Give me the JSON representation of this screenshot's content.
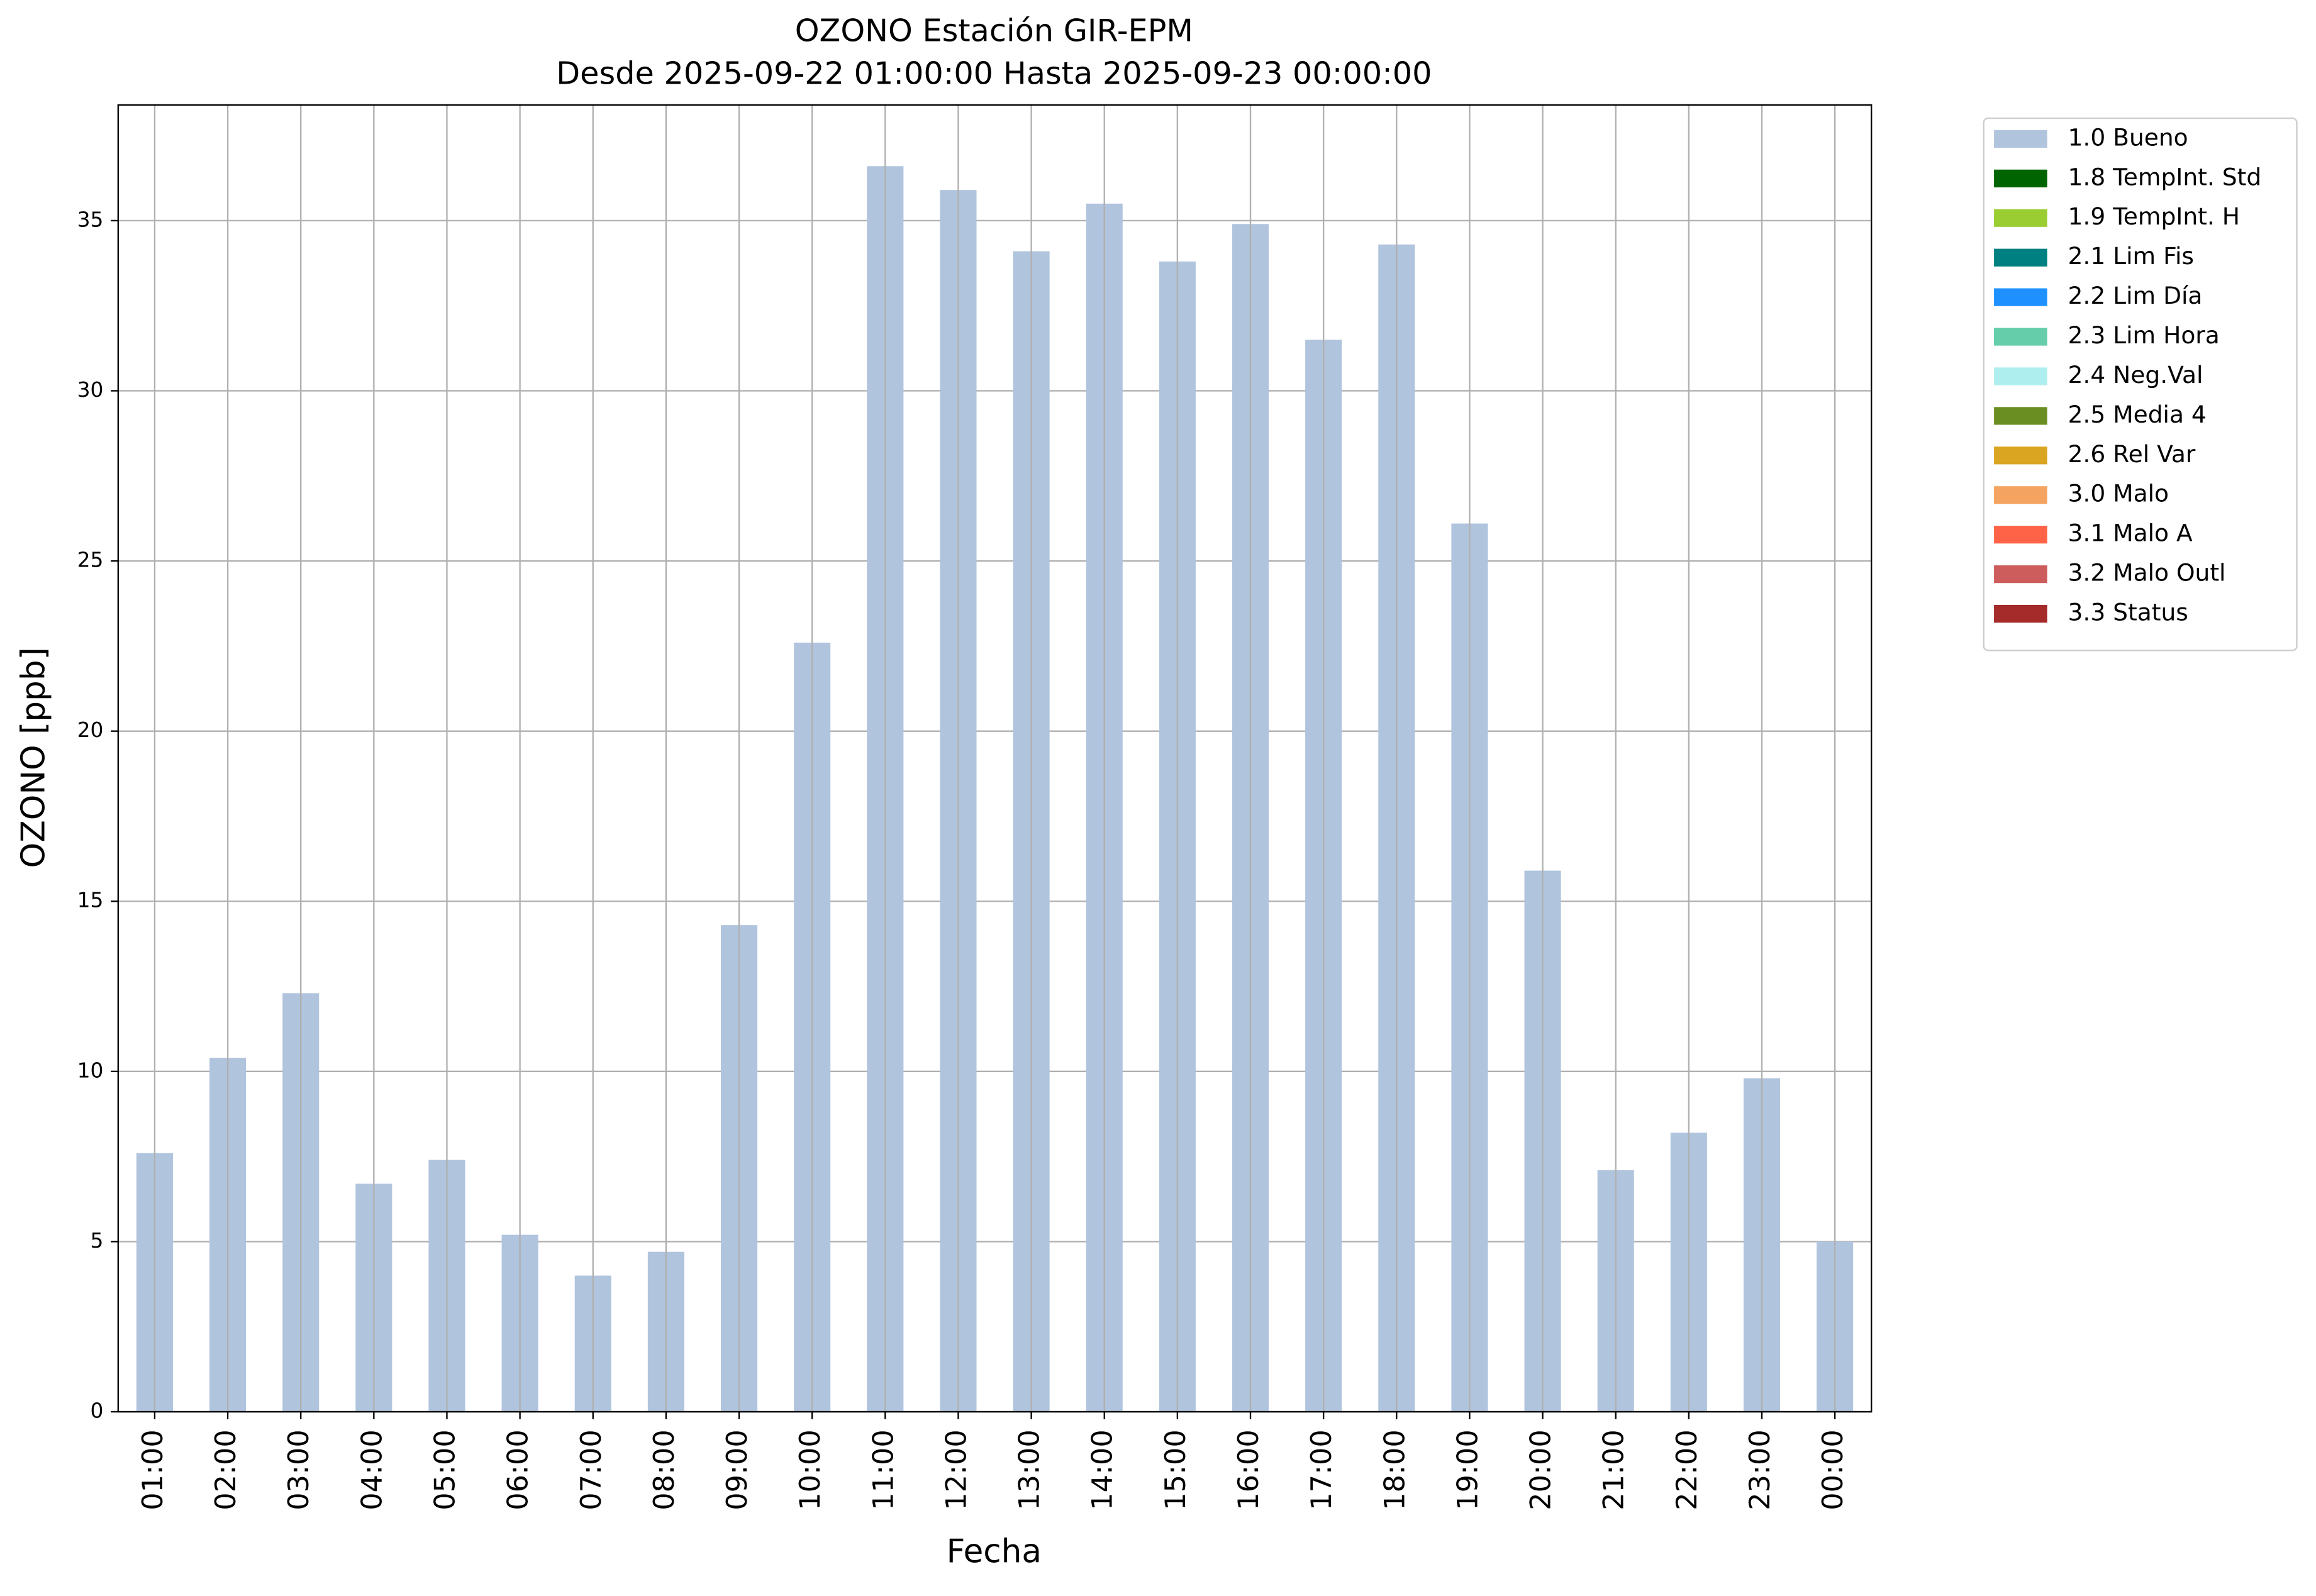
{
  "chart_data": {
    "type": "stacked_bar",
    "title": "OZONO Estación GIR-EPM",
    "subtitle": "Desde 2025-09-22 01:00:00 Hasta 2025-09-23 00:00:00",
    "x_label": "Fecha",
    "y_label": "OZONO [ppb]",
    "categories": [
      "01:00",
      "02:00",
      "03:00",
      "04:00",
      "05:00",
      "06:00",
      "07:00",
      "08:00",
      "09:00",
      "10:00",
      "11:00",
      "12:00",
      "13:00",
      "14:00",
      "15:00",
      "16:00",
      "17:00",
      "18:00",
      "19:00",
      "20:00",
      "21:00",
      "22:00",
      "23:00",
      "00:00"
    ],
    "series": [
      {
        "name": "1.0 Bueno",
        "color": "#b0c4de",
        "values": [
          7.6,
          10.4,
          12.3,
          6.7,
          7.4,
          5.2,
          4.0,
          4.7,
          14.3,
          22.6,
          36.6,
          35.9,
          34.1,
          35.5,
          33.8,
          34.9,
          31.5,
          34.3,
          26.1,
          15.9,
          7.1,
          8.2,
          9.8,
          5.0
        ]
      },
      {
        "name": "1.8 TempInt. Std",
        "color": "#006400",
        "values": [
          0,
          0,
          0,
          0,
          0,
          0,
          0,
          0,
          0,
          0,
          0,
          0,
          0,
          0,
          0,
          0,
          0,
          0,
          0,
          0,
          0,
          0,
          0,
          0
        ]
      },
      {
        "name": "1.9 TempInt. H",
        "color": "#9acd32",
        "values": [
          0,
          0,
          0,
          0,
          0,
          0,
          0,
          0,
          0,
          0,
          0,
          0,
          0,
          0,
          0,
          0,
          0,
          0,
          0,
          0,
          0,
          0,
          0,
          0
        ]
      },
      {
        "name": "2.1 Lim Fis",
        "color": "#008080",
        "values": [
          0,
          0,
          0,
          0,
          0,
          0,
          0,
          0,
          0,
          0,
          0,
          0,
          0,
          0,
          0,
          0,
          0,
          0,
          0,
          0,
          0,
          0,
          0,
          0
        ]
      },
      {
        "name": "2.2 Lim Día",
        "color": "#1e90ff",
        "values": [
          0,
          0,
          0,
          0,
          0,
          0,
          0,
          0,
          0,
          0,
          0,
          0,
          0,
          0,
          0,
          0,
          0,
          0,
          0,
          0,
          0,
          0,
          0,
          0
        ]
      },
      {
        "name": "2.3 Lim Hora",
        "color": "#66cdaa",
        "values": [
          0,
          0,
          0,
          0,
          0,
          0,
          0,
          0,
          0,
          0,
          0,
          0,
          0,
          0,
          0,
          0,
          0,
          0,
          0,
          0,
          0,
          0,
          0,
          0
        ]
      },
      {
        "name": "2.4 Neg.Val",
        "color": "#afeeee",
        "values": [
          0,
          0,
          0,
          0,
          0,
          0,
          0,
          0,
          0,
          0,
          0,
          0,
          0,
          0,
          0,
          0,
          0,
          0,
          0,
          0,
          0,
          0,
          0,
          0
        ]
      },
      {
        "name": "2.5 Media 4",
        "color": "#6b8e23",
        "values": [
          0,
          0,
          0,
          0,
          0,
          0,
          0,
          0,
          0,
          0,
          0,
          0,
          0,
          0,
          0,
          0,
          0,
          0,
          0,
          0,
          0,
          0,
          0,
          0
        ]
      },
      {
        "name": "2.6 Rel Var",
        "color": "#daa520",
        "values": [
          0,
          0,
          0,
          0,
          0,
          0,
          0,
          0,
          0,
          0,
          0,
          0,
          0,
          0,
          0,
          0,
          0,
          0,
          0,
          0,
          0,
          0,
          0,
          0
        ]
      },
      {
        "name": "3.0 Malo",
        "color": "#f4a460",
        "values": [
          0,
          0,
          0,
          0,
          0,
          0,
          0,
          0,
          0,
          0,
          0,
          0,
          0,
          0,
          0,
          0,
          0,
          0,
          0,
          0,
          0,
          0,
          0,
          0
        ]
      },
      {
        "name": "3.1 Malo A",
        "color": "#ff6347",
        "values": [
          0,
          0,
          0,
          0,
          0,
          0,
          0,
          0,
          0,
          0,
          0,
          0,
          0,
          0,
          0,
          0,
          0,
          0,
          0,
          0,
          0,
          0,
          0,
          0
        ]
      },
      {
        "name": "3.2 Malo Outl",
        "color": "#cd5c5c",
        "values": [
          0,
          0,
          0,
          0,
          0,
          0,
          0,
          0,
          0,
          0,
          0,
          0,
          0,
          0,
          0,
          0,
          0,
          0,
          0,
          0,
          0,
          0,
          0,
          0
        ]
      },
      {
        "name": "3.3 Status",
        "color": "#a52a2a",
        "values": [
          0,
          0,
          0,
          0,
          0,
          0,
          0,
          0,
          0,
          0,
          0,
          0,
          0,
          0,
          0,
          0,
          0,
          0,
          0,
          0,
          0,
          0,
          0,
          0
        ]
      }
    ],
    "ylim": [
      0,
      38.4
    ],
    "yticks": [
      0,
      5,
      10,
      15,
      20,
      25,
      30,
      35
    ],
    "grid": true,
    "legend": "outside-right"
  }
}
